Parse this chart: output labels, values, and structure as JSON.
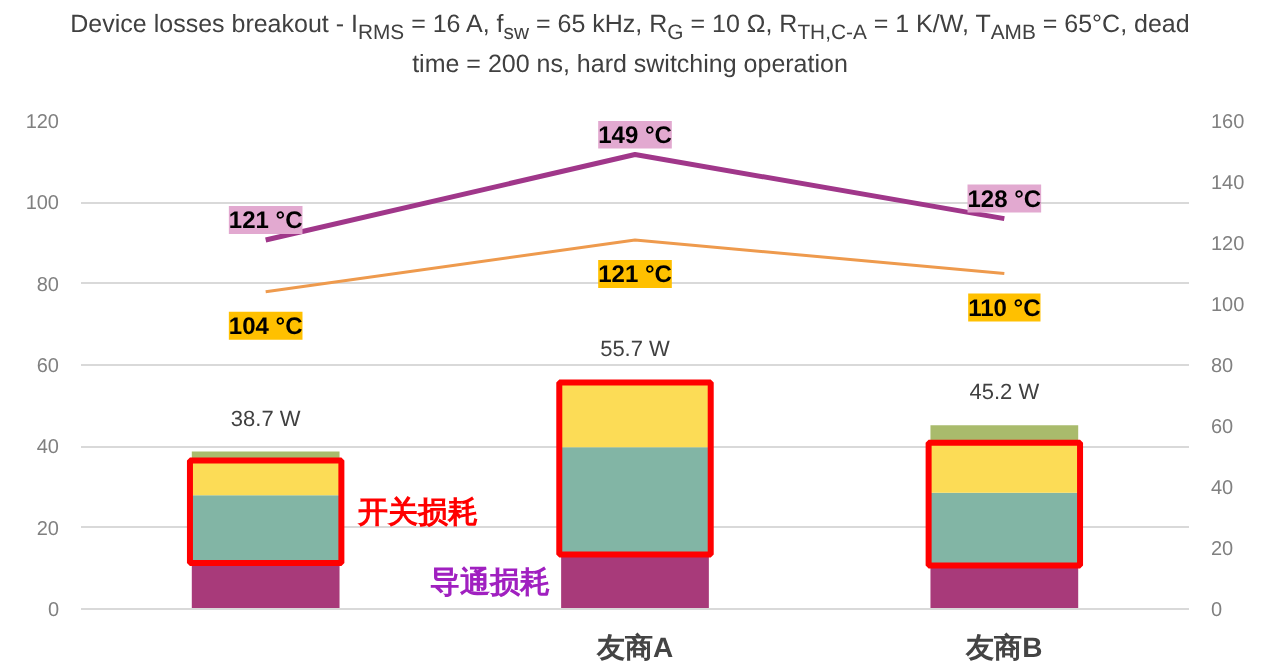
{
  "chart_data": {
    "type": "bar",
    "title": "Device losses breakout - I$_{RMS}$ = 16 A, f$_{sw}$ = 65 kHz, R$_{G}$ = 10 Ω, R$_{TH,C-A}$ = 1 K/W, T$_{AMB}$ = 65°C, dead time = 200 ns, hard switching operation",
    "categories": [
      null,
      "友商A",
      "友商B"
    ],
    "stacked": true,
    "series": [
      {
        "color": "#a83a7a",
        "values": [
          11.3,
          13.4,
          10.7
        ]
      },
      {
        "color": "#82b5a5",
        "values": [
          16.7,
          26.4,
          17.9
        ]
      },
      {
        "color": "#fcdc56",
        "values": [
          8.5,
          15.9,
          12.3
        ]
      },
      {
        "color": "#a9bb6c",
        "values": [
          2.2,
          0,
          4.3
        ]
      },
      {
        "type": "line",
        "axis": "y2",
        "color": "#a0378a",
        "values": [
          121,
          149,
          128
        ],
        "value_labels": [
          "121 °C",
          "149 °C",
          "128 °C"
        ]
      },
      {
        "type": "line",
        "axis": "y2",
        "color": "#ee9a4d",
        "values": [
          104,
          121,
          110
        ],
        "value_labels": [
          "104 °C",
          "121 °C",
          "110 °C"
        ]
      }
    ],
    "totals": [
      "38.7 W",
      "55.7 W",
      "45.2 W"
    ],
    "annotations": [
      "开关损耗",
      "导通损耗"
    ],
    "ylim": [
      0,
      120
    ],
    "yticks": [
      0,
      20,
      40,
      60,
      80,
      100,
      120
    ],
    "y2lim": [
      0,
      160
    ],
    "y2ticks": [
      0,
      20,
      40,
      60,
      80,
      100,
      120,
      140,
      160
    ],
    "grid": "y",
    "marker": "none",
    "line_style": "solid"
  }
}
